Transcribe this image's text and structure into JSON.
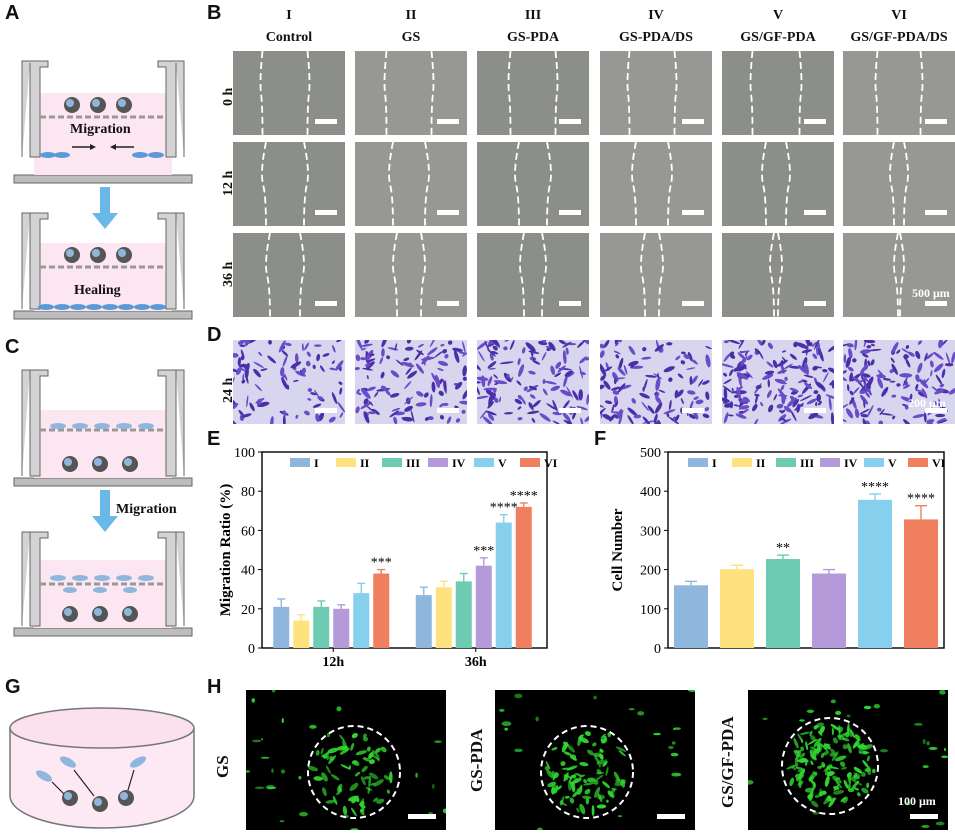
{
  "panels": {
    "A": "A",
    "B": "B",
    "C": "C",
    "D": "D",
    "E": "E",
    "F": "F",
    "G": "G",
    "H": "H"
  },
  "schematic_a": {
    "migration": "Migration",
    "healing": "Healing"
  },
  "schematic_c": {
    "migration": "Migration"
  },
  "groups": [
    {
      "roman": "I",
      "name": "Control"
    },
    {
      "roman": "II",
      "name": "GS"
    },
    {
      "roman": "III",
      "name": "GS-PDA"
    },
    {
      "roman": "IV",
      "name": "GS-PDA/DS"
    },
    {
      "roman": "V",
      "name": "GS/GF-PDA"
    },
    {
      "roman": "VI",
      "name": "GS/GF-PDA/DS"
    }
  ],
  "rows_b": [
    "0 h",
    "12 h",
    "36 h"
  ],
  "row_d": "24 h",
  "scale_b": "500 μm",
  "scale_d": "200 μm",
  "scale_h": "100 μm",
  "h_labels": [
    "GS",
    "GS-PDA",
    "GS/GF-PDA"
  ],
  "colors": {
    "I": "#8fb7de",
    "II": "#fde27d",
    "III": "#6ccbb0",
    "IV": "#b49ad8",
    "V": "#86d0ee",
    "VI": "#f07f5f"
  },
  "chart_data": [
    {
      "type": "bar",
      "title": "",
      "ylabel": "Migration Ratio (%)",
      "xlabel": "",
      "ylim": [
        0,
        100
      ],
      "yticks": [
        0,
        20,
        40,
        60,
        80,
        100
      ],
      "categories": [
        "12h",
        "36h"
      ],
      "legend": [
        "I",
        "II",
        "III",
        "IV",
        "V",
        "VI"
      ],
      "series": [
        {
          "name": "I",
          "values": [
            21,
            27
          ],
          "errors": [
            4,
            4
          ]
        },
        {
          "name": "II",
          "values": [
            14,
            31
          ],
          "errors": [
            3,
            3
          ]
        },
        {
          "name": "III",
          "values": [
            21,
            34
          ],
          "errors": [
            3,
            4
          ]
        },
        {
          "name": "IV",
          "values": [
            20,
            42
          ],
          "errors": [
            2,
            4
          ]
        },
        {
          "name": "V",
          "values": [
            28,
            64
          ],
          "errors": [
            5,
            4
          ]
        },
        {
          "name": "VI",
          "values": [
            38,
            72
          ],
          "errors": [
            2,
            2
          ]
        }
      ],
      "significance": [
        {
          "series": "VI",
          "category": "12h",
          "label": "***"
        },
        {
          "series": "IV",
          "category": "36h",
          "label": "***"
        },
        {
          "series": "V",
          "category": "36h",
          "label": "****"
        },
        {
          "series": "VI",
          "category": "36h",
          "label": "****"
        }
      ]
    },
    {
      "type": "bar",
      "title": "",
      "ylabel": "Cell Number",
      "xlabel": "",
      "ylim": [
        0,
        500
      ],
      "yticks": [
        0,
        100,
        200,
        300,
        400,
        500
      ],
      "categories": [
        "I",
        "II",
        "III",
        "IV",
        "V",
        "VI"
      ],
      "legend": [
        "I",
        "II",
        "III",
        "IV",
        "V",
        "VI"
      ],
      "values": [
        160,
        201,
        227,
        190,
        378,
        328
      ],
      "errors": [
        10,
        10,
        10,
        10,
        15,
        35
      ],
      "significance": [
        {
          "category": "III",
          "label": "**"
        },
        {
          "category": "V",
          "label": "****"
        },
        {
          "category": "VI",
          "label": "****"
        }
      ]
    }
  ]
}
